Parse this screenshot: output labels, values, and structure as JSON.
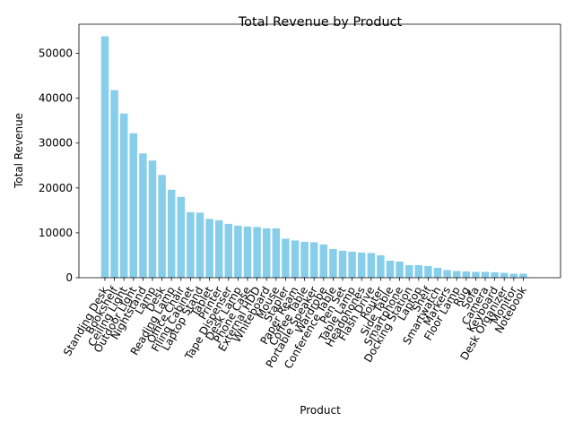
{
  "chart_data": {
    "type": "bar",
    "title": "Total Revenue by Product",
    "xlabel": "Product",
    "ylabel": "Total Revenue",
    "ylim": [
      0,
      56500
    ],
    "yticks": [
      0,
      10000,
      20000,
      30000,
      40000,
      50000
    ],
    "grid": false,
    "bar_color": "#87CEEB",
    "categories": [
      "Standing Desk",
      "Bookshelf",
      "Ceiling Light",
      "Outdoor Light",
      "Nightstand",
      "Lamp",
      "Desk",
      "Reading Lamp",
      "Office Chair",
      "Filing Cabinet",
      "Laptop Stand",
      "Tablet",
      "Printer",
      "Tape Dispenser",
      "Desk Lamp",
      "Phone Case",
      "External HDD",
      "Whiteboard",
      "Mouse",
      "Stapler",
      "Paper Ream",
      "Coffee Table",
      "Portable Speaker",
      "Wardrobe",
      "Conference Table",
      "Pen Set",
      "Table Lamp",
      "Headphones",
      "Flash Drive",
      "Router",
      "Side Table",
      "Smartphone",
      "Docking Station",
      "Laptop",
      "Shelf",
      "Smartwatch",
      "Markers",
      "Floor Lamp",
      "Rug",
      "Sofa",
      "Camera",
      "Keyboard",
      "Desk Organizer",
      "Monitor",
      "Notebook"
    ],
    "values": [
      53800,
      41800,
      36600,
      32200,
      27700,
      26100,
      22900,
      19600,
      18000,
      14600,
      14500,
      13100,
      12800,
      12000,
      11600,
      11400,
      11300,
      11000,
      11000,
      8700,
      8300,
      8000,
      7900,
      7400,
      6400,
      6000,
      5800,
      5600,
      5500,
      5000,
      3800,
      3600,
      2800,
      2800,
      2600,
      2200,
      1700,
      1500,
      1400,
      1300,
      1300,
      1200,
      1100,
      900,
      900
    ]
  }
}
